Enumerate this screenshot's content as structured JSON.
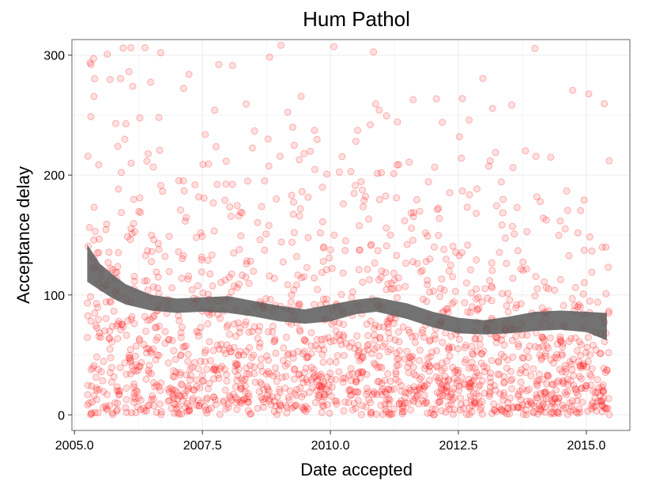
{
  "chart_data": {
    "type": "scatter",
    "title": "Hum Pathol",
    "xlabel": "Date accepted",
    "ylabel": "Acceptance delay",
    "xlim": [
      2004.95,
      2015.85
    ],
    "ylim": [
      -13,
      313
    ],
    "x_ticks": [
      2005.0,
      2007.5,
      2010.0,
      2012.5,
      2015.0
    ],
    "x_tick_labels": [
      "2005.0",
      "2007.5",
      "2010.0",
      "2012.5",
      "2015.0"
    ],
    "y_ticks": [
      0,
      100,
      200,
      300
    ],
    "y_tick_labels": [
      "0",
      "100",
      "200",
      "300"
    ],
    "grid": true,
    "colors": {
      "points": "#ff0000",
      "band": "#595959",
      "grid": "#ebebeb",
      "border": "#7f7f7f"
    },
    "smooth_band": {
      "x": [
        2005.25,
        2005.5,
        2005.75,
        2006.0,
        2006.5,
        2007.0,
        2007.5,
        2008.0,
        2008.5,
        2009.0,
        2009.5,
        2010.0,
        2010.5,
        2010.9,
        2011.5,
        2012.0,
        2012.5,
        2013.0,
        2013.5,
        2014.0,
        2014.5,
        2015.0,
        2015.4
      ],
      "lower": [
        111,
        104,
        97,
        92,
        87,
        85,
        86,
        85,
        82,
        78,
        76,
        78,
        84,
        86,
        80,
        73,
        68,
        67,
        68,
        70,
        71,
        69,
        62
      ],
      "upper": [
        142,
        126,
        117,
        109,
        100,
        97,
        98,
        99,
        95,
        91,
        88,
        92,
        96,
        98,
        93,
        86,
        81,
        79,
        82,
        86,
        87,
        86,
        85
      ]
    },
    "scatter_points": {
      "n": 1800,
      "x_range": [
        2005.25,
        2015.45
      ],
      "approx_median_delay": 80,
      "approx_max_delay": 310
    }
  }
}
